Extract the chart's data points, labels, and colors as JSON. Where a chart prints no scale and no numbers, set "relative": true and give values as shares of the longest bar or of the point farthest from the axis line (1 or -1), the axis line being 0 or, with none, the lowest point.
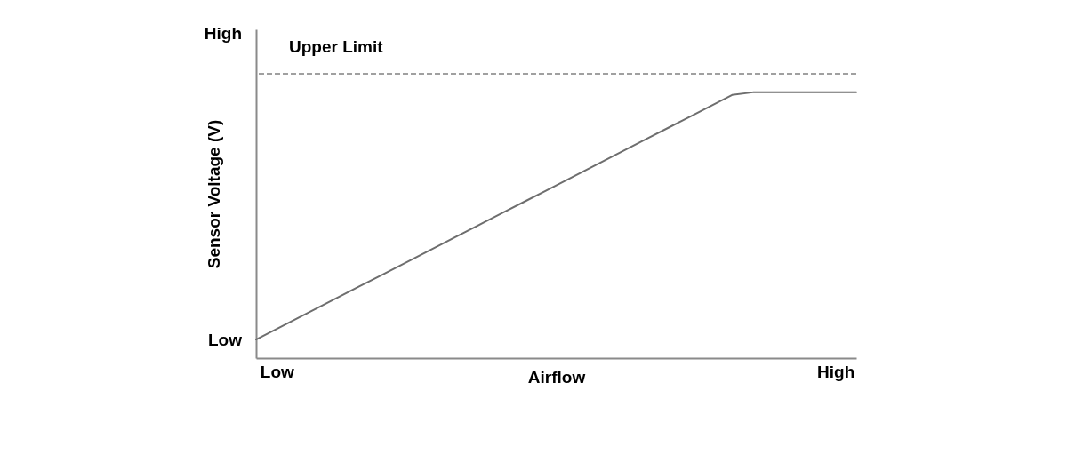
{
  "chart_data": {
    "type": "line",
    "relative": true,
    "xlabel": "Airflow",
    "ylabel": "Sensor Voltage (V)",
    "categories": [
      null,
      "Low",
      null,
      null,
      null,
      null,
      null,
      null,
      null,
      null,
      null,
      null,
      null,
      null,
      null,
      null,
      null,
      null,
      null,
      null,
      null,
      null,
      null,
      null,
      null,
      null,
      null,
      null,
      "High",
      null
    ],
    "values": [
      0.07,
      0.11,
      0.15,
      0.19,
      0.23,
      0.27,
      0.31,
      0.35,
      0.39,
      0.43,
      0.47,
      0.51,
      0.55,
      0.59,
      0.63,
      0.67,
      0.71,
      0.75,
      0.79,
      0.83,
      0.87,
      0.91,
      0.95,
      0.99,
      1,
      1,
      1,
      1,
      1,
      1
    ],
    "color": "#6e6e6e",
    "line_style": "solid",
    "ref_lines": [
      {
        "axis": "y",
        "value": 1.07,
        "label": "Upper Limit",
        "line_style": "dashed",
        "color": "#a0a0a0"
      }
    ],
    "annotations": [
      "High",
      "Low"
    ]
  }
}
